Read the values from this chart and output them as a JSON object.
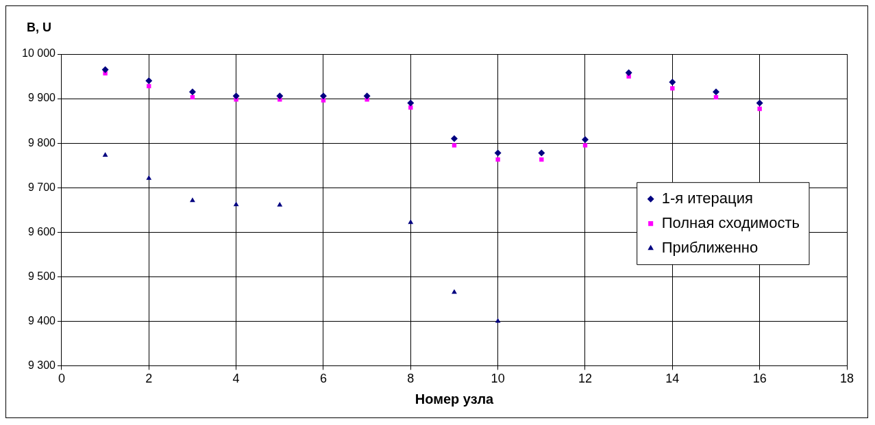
{
  "chart_data": {
    "type": "scatter",
    "ylabel": "B, U",
    "xlabel": "Номер узла",
    "xlim": [
      0,
      18
    ],
    "xticks": [
      0,
      2,
      4,
      6,
      8,
      10,
      12,
      14,
      16,
      18
    ],
    "ylim": [
      9300,
      10000
    ],
    "yticks": [
      {
        "value": 9300,
        "label": "9 300"
      },
      {
        "value": 9400,
        "label": "9 400"
      },
      {
        "value": 9500,
        "label": "9 500"
      },
      {
        "value": 9600,
        "label": "9 600"
      },
      {
        "value": 9700,
        "label": "9 700"
      },
      {
        "value": 9800,
        "label": "9 800"
      },
      {
        "value": 9900,
        "label": "9 900"
      },
      {
        "value": 10000,
        "label": "10 000"
      }
    ],
    "grid": true,
    "legend": "right",
    "series": [
      {
        "name": "1-я итерация",
        "color": "#000080",
        "marker": "diamond",
        "x": [
          1,
          2,
          3,
          4,
          5,
          6,
          7,
          8,
          9,
          10,
          11,
          12,
          13,
          14,
          15,
          16
        ],
        "values": [
          9965,
          9940,
          9915,
          9906,
          9906,
          9906,
          9906,
          9890,
          9810,
          9778,
          9778,
          9808,
          9958,
          9937,
          9915,
          9890
        ]
      },
      {
        "name": "Полная сходимость",
        "color": "#ff00ff",
        "marker": "square",
        "x": [
          1,
          2,
          3,
          4,
          5,
          6,
          7,
          8,
          9,
          10,
          11,
          12,
          13,
          14,
          15,
          16
        ],
        "values": [
          9957,
          9928,
          9903,
          9898,
          9898,
          9896,
          9898,
          9880,
          9795,
          9763,
          9763,
          9795,
          9950,
          9923,
          9903,
          9877
        ]
      },
      {
        "name": "Приближенно",
        "color": "#000080",
        "marker": "triangle",
        "x": [
          1,
          2,
          3,
          4,
          5,
          8,
          9,
          10
        ],
        "values": [
          9773,
          9721,
          9671,
          9662,
          9661,
          9622,
          9465,
          9400
        ]
      }
    ]
  }
}
